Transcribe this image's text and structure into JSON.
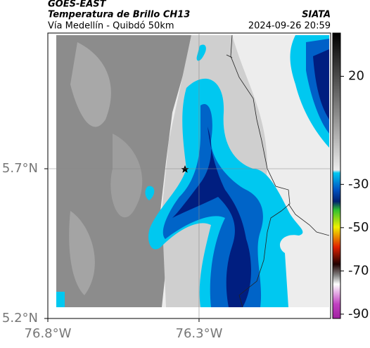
{
  "chart_data": {
    "type": "map",
    "title": "GOES-EAST",
    "subtitle": "Temperatura de Brillo CH13",
    "annotations": [
      "Vía Medellín - Quibdó 50km",
      "SIATA",
      "2024-09-26 20:59"
    ],
    "xlim": [
      -76.8,
      -75.865
    ],
    "ylim": [
      5.2,
      6.153
    ],
    "xticks": [
      {
        "value": -76.8,
        "label": "76.8°W"
      },
      {
        "value": -76.3,
        "label": "76.3°W"
      }
    ],
    "yticks": [
      {
        "value": 5.2,
        "label": "5.2°N"
      },
      {
        "value": 5.7,
        "label": "5.7°N"
      }
    ],
    "grid": true,
    "colorbar": {
      "lim": [
        -92,
        40
      ],
      "ticks": [
        20,
        -30,
        -50,
        -70,
        -90
      ]
    }
  }
}
